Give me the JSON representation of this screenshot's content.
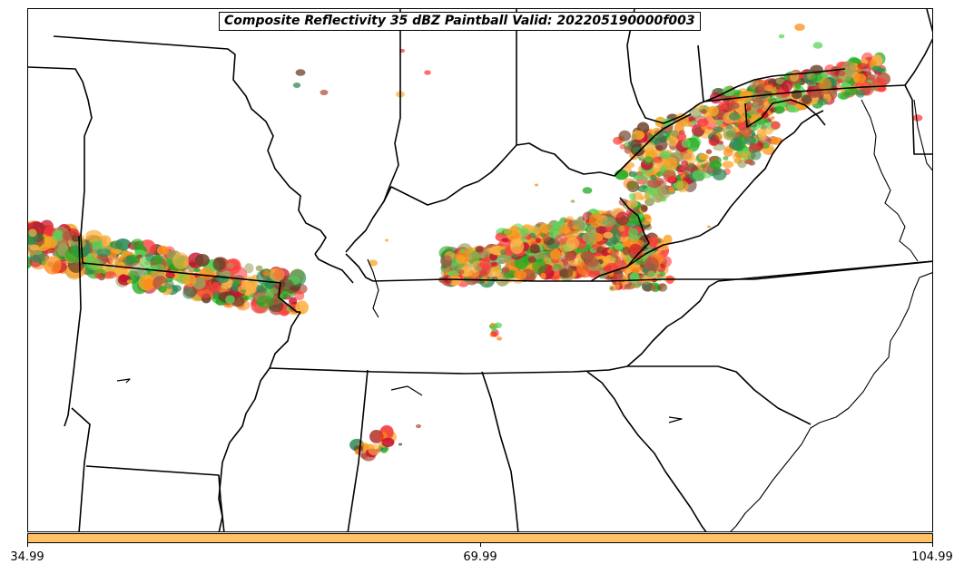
{
  "title": "Composite Reflectivity 35 dBZ Paintball Valid: 202205190000f003",
  "colorbar": {
    "color": "#ffc266",
    "ticks": [
      "34.99",
      "69.99",
      "104.99"
    ]
  },
  "member_colors": [
    "#ff3b3b",
    "#ff8c1a",
    "#f5a623",
    "#ffb347",
    "#c8102e",
    "#2e8b57",
    "#5bd65b",
    "#9aa05a",
    "#b5533c",
    "#6b3f2a",
    "#22aa22"
  ],
  "storm_regions": [
    "missouri-arkansas-line",
    "kentucky-tennessee-line",
    "virginia-maryland-cluster",
    "alabama-cell"
  ]
}
